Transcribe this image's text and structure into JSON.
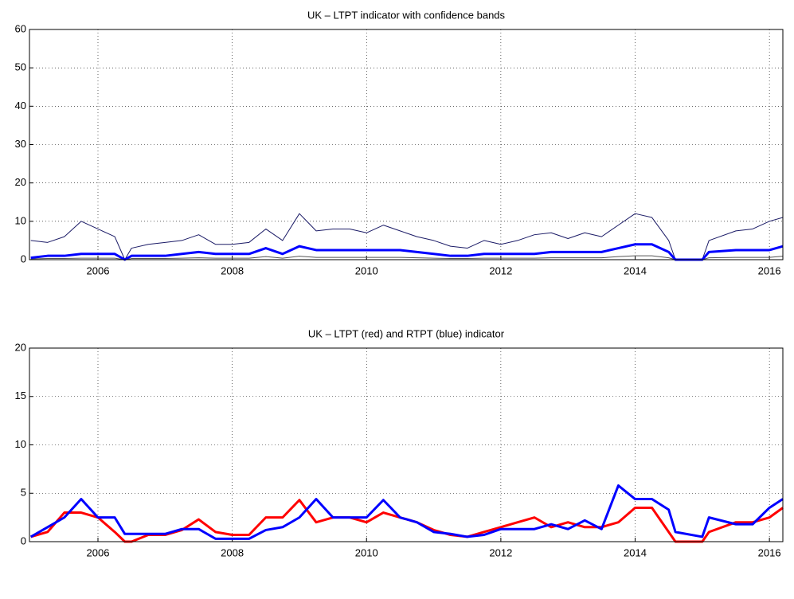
{
  "chart_data": [
    {
      "type": "line",
      "title": "UK – LTPT indicator with confidence bands",
      "x": [
        2005.0,
        2005.25,
        2005.5,
        2005.75,
        2006.0,
        2006.25,
        2006.4,
        2006.5,
        2006.75,
        2007.0,
        2007.25,
        2007.5,
        2007.75,
        2008.0,
        2008.25,
        2008.5,
        2008.75,
        2009.0,
        2009.25,
        2009.5,
        2009.75,
        2010.0,
        2010.25,
        2010.5,
        2010.75,
        2011.0,
        2011.25,
        2011.5,
        2011.75,
        2012.0,
        2012.25,
        2012.5,
        2012.75,
        2013.0,
        2013.25,
        2013.5,
        2013.75,
        2014.0,
        2014.25,
        2014.5,
        2014.6,
        2015.0,
        2015.1,
        2015.5,
        2015.75,
        2016.0,
        2016.2
      ],
      "series": [
        {
          "color": "#1a1a66",
          "width": 1,
          "values": [
            5,
            4.5,
            6,
            10,
            8,
            6,
            0,
            3,
            4,
            4.5,
            5,
            6.5,
            4,
            4,
            4.5,
            8,
            5,
            12,
            7.5,
            8,
            8,
            7,
            9,
            7.5,
            6,
            5,
            3.5,
            3,
            5,
            4,
            5,
            6.5,
            7,
            5.5,
            7,
            6,
            9,
            12,
            11,
            5,
            0,
            0,
            5,
            7.5,
            8,
            10,
            11
          ]
        },
        {
          "color": "#555555",
          "width": 1,
          "values": [
            0.2,
            0.3,
            0.3,
            0.4,
            0.4,
            0.4,
            0,
            0.3,
            0.3,
            0.3,
            0.4,
            0.5,
            0.4,
            0.4,
            0.4,
            0.8,
            0.4,
            0.9,
            0.6,
            0.6,
            0.6,
            0.6,
            0.6,
            0.6,
            0.5,
            0.4,
            0.3,
            0.3,
            0.4,
            0.4,
            0.4,
            0.4,
            0.5,
            0.5,
            0.5,
            0.5,
            0.8,
            1,
            1,
            0.5,
            0,
            0,
            0.5,
            0.6,
            0.6,
            0.6,
            0.9
          ]
        },
        {
          "color": "#0000ff",
          "width": 3,
          "values": [
            0.5,
            1,
            1,
            1.5,
            1.5,
            1.5,
            0,
            1,
            1,
            1,
            1.5,
            2,
            1.5,
            1.5,
            1.5,
            3,
            1.5,
            3.5,
            2.5,
            2.5,
            2.5,
            2.5,
            2.5,
            2.5,
            2,
            1.5,
            1,
            1,
            1.5,
            1.5,
            1.5,
            1.5,
            2,
            2,
            2,
            2,
            3,
            4,
            4,
            2,
            0,
            0,
            2,
            2.5,
            2.5,
            2.5,
            3.5
          ]
        }
      ],
      "xlim": [
        2004.98,
        2016.2
      ],
      "ylim": [
        0,
        60
      ],
      "xticks": [
        2006,
        2008,
        2010,
        2012,
        2014,
        2016
      ],
      "yticks": [
        0,
        10,
        20,
        30,
        40,
        50,
        60
      ],
      "grid": true
    },
    {
      "type": "line",
      "title": "UK – LTPT (red) and RTPT (blue) indicator",
      "x": [
        2005.0,
        2005.25,
        2005.5,
        2005.75,
        2006.0,
        2006.25,
        2006.4,
        2006.5,
        2006.75,
        2007.0,
        2007.25,
        2007.5,
        2007.75,
        2008.0,
        2008.25,
        2008.5,
        2008.75,
        2009.0,
        2009.25,
        2009.5,
        2009.75,
        2010.0,
        2010.25,
        2010.5,
        2010.75,
        2011.0,
        2011.25,
        2011.5,
        2011.75,
        2012.0,
        2012.25,
        2012.5,
        2012.75,
        2013.0,
        2013.25,
        2013.5,
        2013.75,
        2014.0,
        2014.25,
        2014.5,
        2014.6,
        2015.0,
        2015.1,
        2015.5,
        2015.75,
        2016.0,
        2016.2
      ],
      "series": [
        {
          "color": "#ff0000",
          "width": 3,
          "values": [
            0.5,
            1,
            3,
            3,
            2.5,
            1,
            0,
            0,
            0.7,
            0.7,
            1.2,
            2.3,
            1,
            0.7,
            0.7,
            2.5,
            2.5,
            4.3,
            2,
            2.5,
            2.5,
            2,
            3,
            2.5,
            2,
            1.2,
            0.7,
            0.5,
            1,
            1.5,
            2,
            2.5,
            1.5,
            2,
            1.5,
            1.5,
            2,
            3.5,
            3.5,
            1,
            0,
            0,
            1,
            2,
            2,
            2.5,
            3.5
          ]
        },
        {
          "color": "#0000ff",
          "width": 3,
          "values": [
            0.5,
            1.5,
            2.5,
            4.4,
            2.5,
            2.5,
            0.8,
            0.8,
            0.8,
            0.8,
            1.3,
            1.3,
            0.3,
            0.3,
            0.3,
            1.2,
            1.5,
            2.5,
            4.4,
            2.5,
            2.5,
            2.5,
            4.3,
            2.5,
            2,
            1,
            0.8,
            0.5,
            0.7,
            1.3,
            1.3,
            1.3,
            1.8,
            1.3,
            2.2,
            1.3,
            5.8,
            4.4,
            4.4,
            3.3,
            1,
            0.5,
            2.5,
            1.8,
            1.8,
            3.5,
            4.4
          ]
        }
      ],
      "xlim": [
        2004.98,
        2016.2
      ],
      "ylim": [
        0,
        20
      ],
      "xticks": [
        2006,
        2008,
        2010,
        2012,
        2014,
        2016
      ],
      "yticks": [
        0,
        5,
        10,
        15,
        20
      ],
      "grid": true
    }
  ]
}
